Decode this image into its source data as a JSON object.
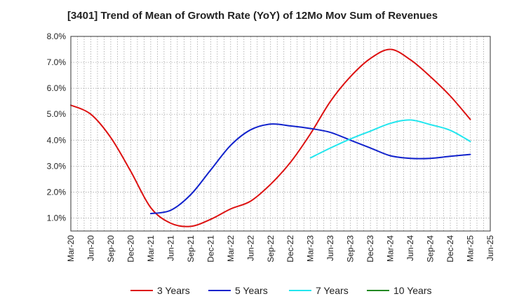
{
  "chart_data": {
    "type": "line",
    "title": "[3401]  Trend of Mean of Growth Rate (YoY) of 12Mo Mov Sum of Revenues",
    "xlabel": "",
    "ylabel": "",
    "ylim": [
      0.5,
      8.0
    ],
    "yticks": [
      1.0,
      2.0,
      3.0,
      4.0,
      5.0,
      6.0,
      7.0,
      8.0
    ],
    "ytick_labels": [
      "1.0%",
      "2.0%",
      "3.0%",
      "4.0%",
      "5.0%",
      "6.0%",
      "7.0%",
      "8.0%"
    ],
    "categories": [
      "Mar-20",
      "Jun-20",
      "Sep-20",
      "Dec-20",
      "Mar-21",
      "Jun-21",
      "Sep-21",
      "Dec-21",
      "Mar-22",
      "Jun-22",
      "Sep-22",
      "Dec-22",
      "Mar-23",
      "Jun-23",
      "Sep-23",
      "Dec-23",
      "Mar-24",
      "Jun-24",
      "Sep-24",
      "Dec-24",
      "Mar-25",
      "Jun-25"
    ],
    "grid": true,
    "legend_position": "bottom",
    "series": [
      {
        "name": "3 Years",
        "color": "#dd1111",
        "values": [
          5.35,
          5.0,
          4.1,
          2.8,
          1.4,
          0.8,
          0.68,
          0.95,
          1.35,
          1.65,
          2.3,
          3.15,
          4.25,
          5.5,
          6.45,
          7.15,
          7.5,
          7.1,
          6.45,
          5.7,
          4.8,
          null
        ]
      },
      {
        "name": "5 Years",
        "color": "#1122cc",
        "values": [
          null,
          null,
          null,
          null,
          1.17,
          1.3,
          1.9,
          2.85,
          3.8,
          4.4,
          4.62,
          4.55,
          4.45,
          4.3,
          4.0,
          3.7,
          3.4,
          3.3,
          3.3,
          3.38,
          3.45,
          null
        ]
      },
      {
        "name": "7 Years",
        "color": "#22e6ee",
        "values": [
          null,
          null,
          null,
          null,
          null,
          null,
          null,
          null,
          null,
          null,
          null,
          null,
          3.32,
          3.7,
          4.05,
          4.35,
          4.65,
          4.78,
          4.6,
          4.38,
          3.95,
          null
        ]
      },
      {
        "name": "10 Years",
        "color": "#228822",
        "values": [
          null,
          null,
          null,
          null,
          null,
          null,
          null,
          null,
          null,
          null,
          null,
          null,
          null,
          null,
          null,
          null,
          null,
          null,
          null,
          null,
          null,
          null
        ]
      }
    ]
  }
}
